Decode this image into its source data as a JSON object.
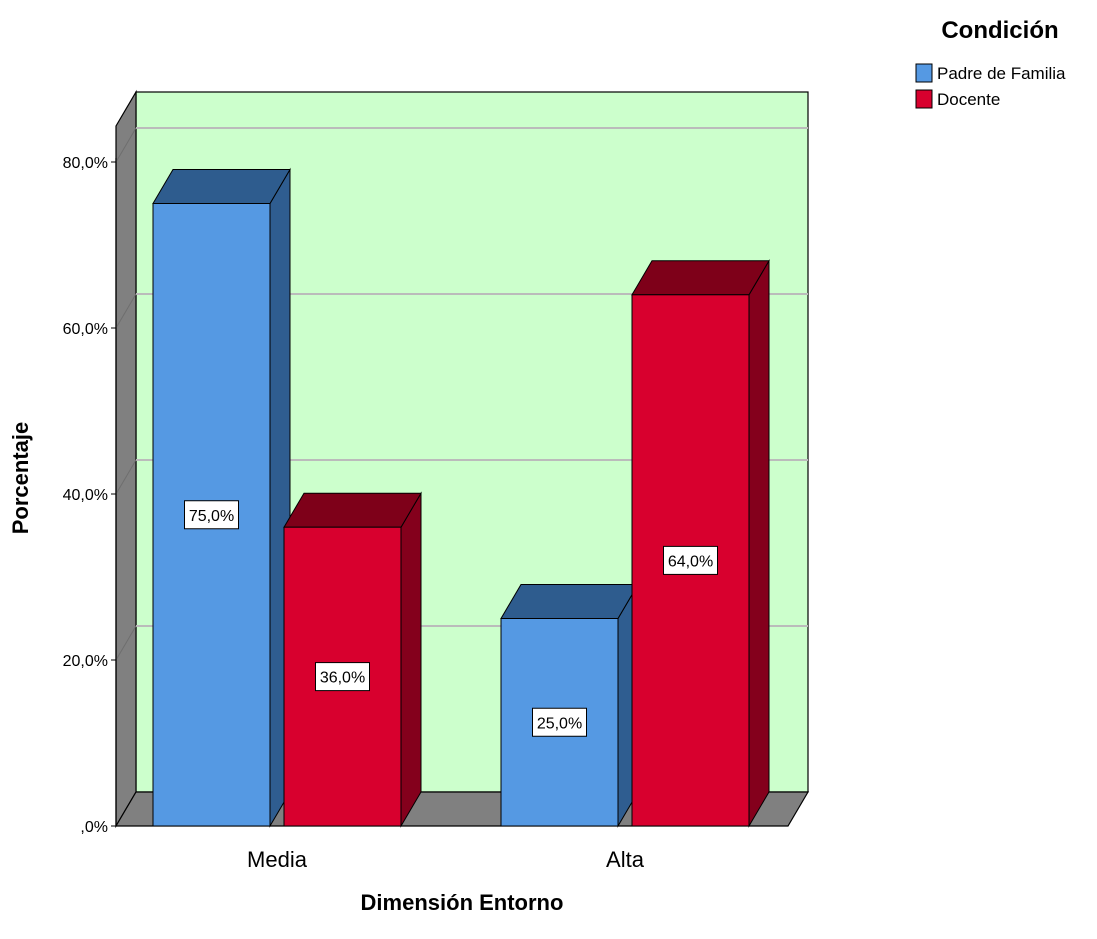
{
  "chart_data": {
    "type": "bar",
    "categories": [
      "Media",
      "Alta"
    ],
    "series": [
      {
        "name": "Padre de Familia",
        "values": [
          75.0,
          25.0
        ],
        "labels": [
          "75,0%",
          "25,0%"
        ],
        "color": "#5599E3",
        "top_color": "#2E5C8E",
        "side_color": "#2F5D90"
      },
      {
        "name": "Docente",
        "values": [
          36.0,
          64.0
        ],
        "labels": [
          "36,0%",
          "64,0%"
        ],
        "color": "#D8002E",
        "top_color": "#7E0019",
        "side_color": "#84001C"
      }
    ],
    "xlabel": "Dimensión Entorno",
    "ylabel": "Porcentaje",
    "ylim": [
      0,
      80
    ],
    "yticks": [
      0,
      20,
      40,
      60,
      80
    ],
    "ytick_labels": [
      ",0%",
      "20,0%",
      "40,0%",
      "60,0%",
      "80,0%"
    ],
    "legend_title": "Condición",
    "legend_position": "top-right",
    "grid": true,
    "background_color": "#CCFFCC",
    "floor_color": "#808080"
  }
}
